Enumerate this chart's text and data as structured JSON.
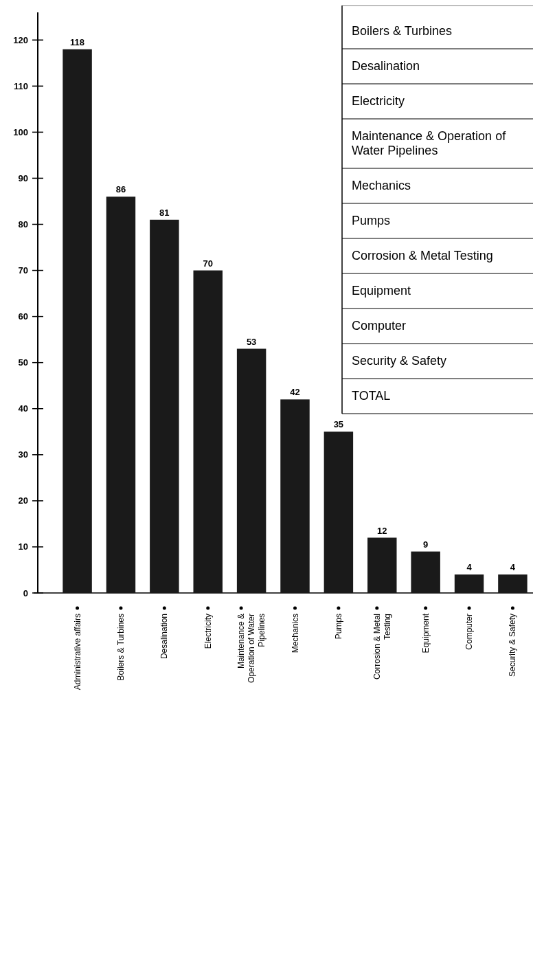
{
  "chart_data": {
    "type": "bar",
    "categories": [
      "Administrative affairs",
      "Boilers & Turbines",
      "Desalination",
      "Electricity",
      "Maintenance & Operation of Water Pipelines",
      "Mechanics",
      "Pumps",
      "Corrosion & Metal Testing",
      "Equipment",
      "Computer",
      "Security & Safety"
    ],
    "values": [
      118,
      86,
      81,
      70,
      53,
      42,
      35,
      12,
      9,
      4,
      4
    ],
    "color": "#1a1a1a",
    "ylim": [
      0,
      126
    ],
    "yticks": [
      0,
      10,
      20,
      30,
      40,
      50,
      60,
      70,
      80,
      90,
      100,
      110,
      120
    ],
    "data_labels": true,
    "annotations": [
      "Boilers & Turbines",
      "Desalination",
      "Electricity",
      "Maintenance & Operation of Water Pipelines",
      "Mechanics",
      "Pumps",
      "Corrosion & Metal Testing",
      "Equipment",
      "Computer",
      "Security & Safety",
      "TOTAL"
    ]
  }
}
